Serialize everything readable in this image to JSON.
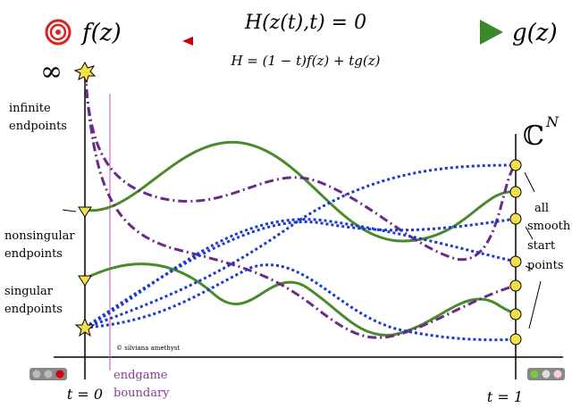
{
  "header": {
    "start_label": "f(z)",
    "equation": "H(z(t),t) = 0",
    "homotopy": "H = (1 − t)f(z) + tg(z)",
    "target_label": "g(z)"
  },
  "symbols": {
    "infinity": "∞",
    "space": "ℂ",
    "space_exponent": "N"
  },
  "labels": {
    "infinite_endpoints": [
      "infinite",
      "endpoints"
    ],
    "nonsingular_endpoints": [
      "nonsingular",
      "endpoints"
    ],
    "singular_endpoints": [
      "singular",
      "endpoints"
    ],
    "start_points": [
      "all",
      "smooth",
      "start",
      "points"
    ],
    "endgame_boundary": [
      "endgame",
      "boundary"
    ]
  },
  "credit": "© silviana amethyst",
  "axis": {
    "t0": "t = 0",
    "t1": "t = 1"
  }
}
